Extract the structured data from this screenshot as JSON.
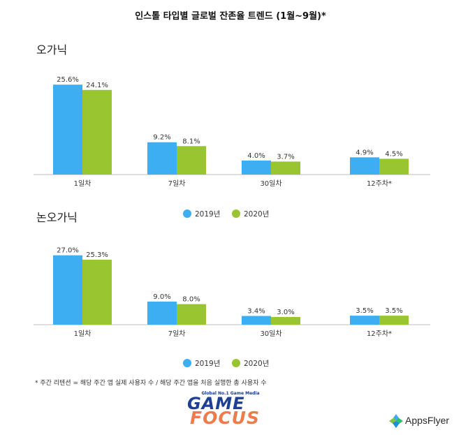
{
  "title": "인스톨 타입별 글로벌 잔존율 트렌드 (1월~9월)*",
  "colors": {
    "2019": "#3daef2",
    "2020": "#99c531"
  },
  "chart_data": [
    {
      "type": "bar",
      "title": "오가닉",
      "categories": [
        "1일차",
        "7일차",
        "30일차",
        "12주차*"
      ],
      "series": [
        {
          "name": "2019년",
          "values": [
            25.6,
            9.2,
            4.0,
            4.9
          ],
          "labels": [
            "25.6%",
            "9.2%",
            "4.0%",
            "4.9%"
          ]
        },
        {
          "name": "2020년",
          "values": [
            24.1,
            8.1,
            3.7,
            4.5
          ],
          "labels": [
            "24.1%",
            "8.1%",
            "3.7%",
            "4.5%"
          ]
        }
      ],
      "grid": false,
      "legend": "bottom"
    },
    {
      "type": "bar",
      "title": "논오가닉",
      "categories": [
        "1일차",
        "7일차",
        "30일차",
        "12주차*"
      ],
      "series": [
        {
          "name": "2019년",
          "values": [
            27.0,
            9.0,
            3.4,
            3.5
          ],
          "labels": [
            "27.0%",
            "9.0%",
            "3.4%",
            "3.5%"
          ]
        },
        {
          "name": "2020년",
          "values": [
            25.3,
            8.0,
            3.0,
            3.5
          ],
          "labels": [
            "25.3%",
            "8.0%",
            "3.0%",
            "3.5%"
          ]
        }
      ],
      "grid": false,
      "legend": "bottom"
    }
  ],
  "footnote": "* 주간 리텐션 = 해당 주간 앱 실제 사용자 수 / 해당 주간 앱을 처음 실행한 총 사용자 수",
  "logos": {
    "gamefocus_tagline": "Global No.1 Game Media",
    "gamefocus_word1": "GAME",
    "gamefocus_word2": "FOCUS",
    "appsflyer": "AppsFlyer"
  }
}
